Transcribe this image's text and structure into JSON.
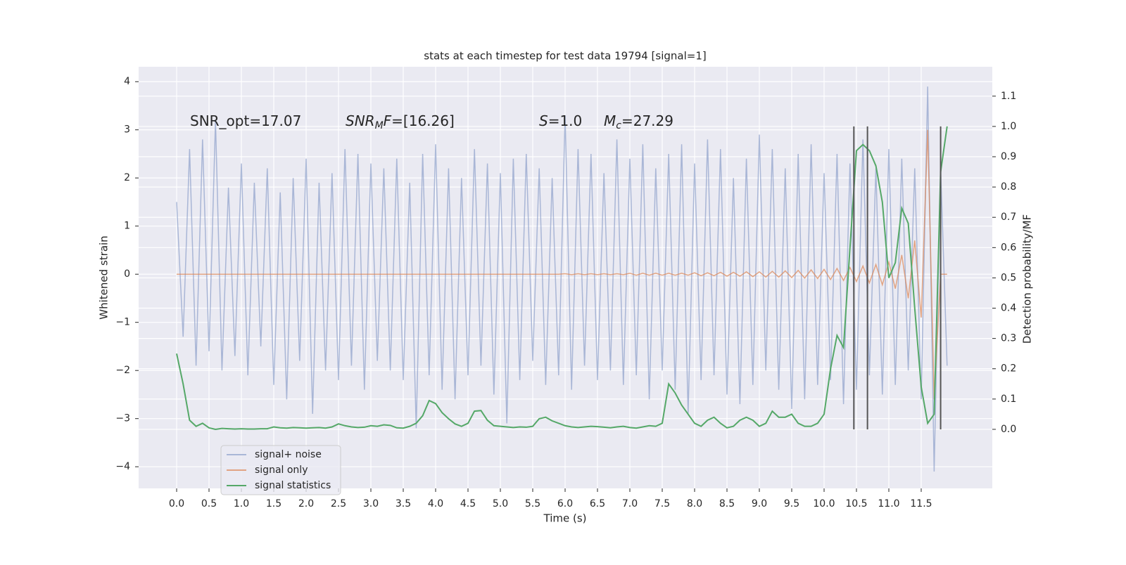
{
  "chart_data": {
    "type": "line",
    "title": "stats at each timestep for test data 19794 [signal=1]",
    "xlabel": "Time (s)",
    "ylabel": "Whitened strain",
    "y2label": "Detection probability/MF",
    "xlim": [
      -0.587,
      12.598
    ],
    "ylim": [
      -4.45,
      4.31
    ],
    "y2lim": [
      -0.195,
      1.197
    ],
    "xticks": [
      {
        "value": 0,
        "label": "0.0"
      },
      0.5,
      {
        "value": 1,
        "label": "1.0"
      },
      1.5,
      {
        "value": 2,
        "label": "2.0"
      },
      2.5,
      {
        "value": 3,
        "label": "3.0"
      },
      3.5,
      {
        "value": 4,
        "label": "4.0"
      },
      4.5,
      {
        "value": 5,
        "label": "5.0"
      },
      5.5,
      {
        "value": 6,
        "label": "6.0"
      },
      6.5,
      {
        "value": 7,
        "label": "7.0"
      },
      7.5,
      {
        "value": 8,
        "label": "8.0"
      },
      8.5,
      {
        "value": 9,
        "label": "9.0"
      },
      9.5,
      {
        "value": 10,
        "label": "10.0"
      },
      10.5,
      {
        "value": 11,
        "label": "11.0"
      },
      11.5
    ],
    "yticks": [
      {
        "value": -4,
        "label": "−4"
      },
      {
        "value": -3,
        "label": "−3"
      },
      {
        "value": -2,
        "label": "−2"
      },
      {
        "value": -1,
        "label": "−1"
      },
      0,
      1,
      2,
      3,
      4
    ],
    "y2ticks": [
      {
        "value": 0,
        "label": "0.0"
      },
      0.1,
      0.2,
      0.3,
      0.4,
      0.5,
      0.6,
      0.7,
      0.8,
      0.9,
      {
        "value": 1,
        "label": "1.0"
      },
      1.1
    ],
    "grid": true,
    "legend": "lower left",
    "x": [
      0,
      0.1,
      0.2,
      0.3,
      0.4,
      0.5,
      0.6,
      0.7,
      0.8,
      0.9,
      1,
      1.1,
      1.2,
      1.3,
      1.4,
      1.5,
      1.6,
      1.7,
      1.8,
      1.9,
      2,
      2.1,
      2.2,
      2.3,
      2.4,
      2.5,
      2.6,
      2.7,
      2.8,
      2.9,
      3,
      3.1,
      3.2,
      3.3,
      3.4,
      3.5,
      3.6,
      3.7,
      3.8,
      3.9,
      4,
      4.1,
      4.2,
      4.3,
      4.4,
      4.5,
      4.6,
      4.7,
      4.8,
      4.9,
      5,
      5.1,
      5.2,
      5.3,
      5.4,
      5.5,
      5.6,
      5.7,
      5.8,
      5.9,
      6,
      6.1,
      6.2,
      6.3,
      6.4,
      6.5,
      6.6,
      6.7,
      6.8,
      6.9,
      7,
      7.1,
      7.2,
      7.3,
      7.4,
      7.5,
      7.6,
      7.7,
      7.8,
      7.9,
      8,
      8.1,
      8.2,
      8.3,
      8.4,
      8.5,
      8.6,
      8.7,
      8.8,
      8.9,
      9,
      9.1,
      9.2,
      9.3,
      9.4,
      9.5,
      9.6,
      9.7,
      9.8,
      9.9,
      10,
      10.1,
      10.2,
      10.3,
      10.4,
      10.5,
      10.6,
      10.7,
      10.8,
      10.9,
      11,
      11.1,
      11.2,
      11.3,
      11.4,
      11.5,
      11.6,
      11.7,
      11.8,
      11.9
    ],
    "series": [
      {
        "name": "signal+ noise",
        "color": "#8da0cb",
        "axis": "y",
        "values": [
          1.5,
          -1.3,
          2.6,
          -1.9,
          2.8,
          -1.6,
          3.2,
          -2.0,
          1.8,
          -1.7,
          2.3,
          -2.1,
          1.9,
          -1.5,
          2.2,
          -2.3,
          1.7,
          -2.6,
          2.0,
          -1.8,
          2.4,
          -2.9,
          1.9,
          -2.0,
          2.1,
          -2.2,
          2.6,
          -1.9,
          2.5,
          -2.4,
          2.3,
          -1.8,
          2.2,
          -2.0,
          2.4,
          -2.2,
          1.9,
          -3.2,
          2.5,
          -2.1,
          2.7,
          -2.4,
          2.2,
          -2.6,
          2.0,
          -2.1,
          2.6,
          -1.9,
          2.3,
          -2.5,
          2.1,
          -3.1,
          2.4,
          -2.2,
          2.5,
          -1.8,
          2.2,
          -2.3,
          2.0,
          -2.1,
          3.3,
          -2.4,
          2.6,
          -1.9,
          2.5,
          -2.2,
          2.1,
          -2.0,
          2.8,
          -2.3,
          2.4,
          -2.1,
          2.7,
          -2.6,
          2.2,
          -2.0,
          2.5,
          -2.4,
          2.7,
          -2.9,
          2.3,
          -2.2,
          2.8,
          -2.1,
          2.6,
          -2.5,
          2.0,
          -2.7,
          2.4,
          -2.3,
          2.9,
          -2.0,
          2.6,
          -2.4,
          2.2,
          -2.8,
          2.5,
          -2.6,
          2.7,
          -2.3,
          2.1,
          -2.2,
          2.5,
          -2.7,
          2.3,
          -2.4,
          2.8,
          -2.1,
          2.2,
          -2.5,
          2.6,
          -2.3,
          2.4,
          -2.0,
          2.2,
          -2.6,
          3.9,
          -4.1,
          2.2,
          -1.9
        ]
      },
      {
        "name": "signal only",
        "color": "#dd8452",
        "axis": "y",
        "values": [
          0,
          0,
          0,
          0,
          0,
          0,
          0,
          0,
          0,
          0,
          0,
          0,
          0,
          0,
          0,
          0,
          0,
          0,
          0,
          0,
          0,
          0,
          0,
          0,
          0,
          0,
          0,
          0,
          0,
          0,
          0,
          0,
          0,
          0,
          0,
          0,
          0,
          0,
          0,
          0,
          0,
          0,
          0,
          0,
          0,
          0,
          0,
          0,
          0,
          0,
          0,
          0,
          0,
          0,
          0,
          0,
          0,
          0,
          0,
          0,
          0.01,
          -0.01,
          0.01,
          -0.01,
          0.01,
          -0.01,
          0.01,
          -0.01,
          0.01,
          -0.01,
          0.02,
          -0.02,
          0.02,
          -0.02,
          0.02,
          -0.02,
          0.02,
          -0.02,
          0.02,
          -0.02,
          0.03,
          -0.03,
          0.03,
          -0.03,
          0.04,
          -0.04,
          0.04,
          -0.04,
          0.05,
          -0.05,
          0.05,
          -0.06,
          0.06,
          -0.06,
          0.07,
          -0.07,
          0.08,
          -0.08,
          0.09,
          -0.09,
          0.1,
          -0.11,
          0.12,
          -0.13,
          0.14,
          -0.15,
          0.17,
          -0.18,
          0.2,
          -0.22,
          0.25,
          -0.3,
          0.4,
          -0.5,
          0.7,
          -0.9,
          3.0,
          -2.6,
          0,
          0
        ]
      },
      {
        "name": "signal statistics",
        "color": "#55a868",
        "axis": "y2",
        "values": [
          0.25,
          0.15,
          0.03,
          0.01,
          0.02,
          0.005,
          0.0,
          0.003,
          0.002,
          0.001,
          0.002,
          0.001,
          0.001,
          0.002,
          0.002,
          0.008,
          0.005,
          0.004,
          0.006,
          0.005,
          0.004,
          0.005,
          0.006,
          0.004,
          0.008,
          0.018,
          0.012,
          0.008,
          0.006,
          0.007,
          0.012,
          0.01,
          0.015,
          0.013,
          0.005,
          0.004,
          0.01,
          0.02,
          0.045,
          0.095,
          0.085,
          0.055,
          0.035,
          0.018,
          0.01,
          0.02,
          0.06,
          0.062,
          0.03,
          0.012,
          0.01,
          0.008,
          0.006,
          0.008,
          0.007,
          0.01,
          0.035,
          0.04,
          0.028,
          0.02,
          0.012,
          0.008,
          0.006,
          0.008,
          0.01,
          0.009,
          0.007,
          0.005,
          0.008,
          0.01,
          0.006,
          0.004,
          0.008,
          0.012,
          0.01,
          0.02,
          0.15,
          0.12,
          0.08,
          0.05,
          0.02,
          0.01,
          0.03,
          0.04,
          0.02,
          0.005,
          0.01,
          0.03,
          0.04,
          0.03,
          0.01,
          0.02,
          0.06,
          0.04,
          0.04,
          0.05,
          0.02,
          0.01,
          0.01,
          0.02,
          0.05,
          0.2,
          0.31,
          0.27,
          0.6,
          0.92,
          0.94,
          0.92,
          0.87,
          0.75,
          0.5,
          0.55,
          0.73,
          0.68,
          0.4,
          0.14,
          0.02,
          0.05,
          0.85,
          1.0
        ]
      }
    ],
    "vlines": [
      10.46,
      10.67,
      11.8
    ],
    "vline_range": [
      0,
      1
    ],
    "vline_color": "#555555",
    "annotations": [
      [
        {
          "t": "SNR_opt=17.07",
          "style": "normal"
        }
      ],
      [
        {
          "t": "SNR",
          "style": "italic"
        },
        {
          "t": "M",
          "style": "sub"
        },
        {
          "t": "F",
          "style": "italic"
        },
        {
          "t": "=[16.26]",
          "style": "normal"
        }
      ],
      [
        {
          "t": "S",
          "style": "italic"
        },
        {
          "t": "=1.0",
          "style": "normal"
        }
      ],
      [
        {
          "t": "M",
          "style": "italic"
        },
        {
          "t": "c",
          "style": "sub"
        },
        {
          "t": "=27.29",
          "style": "normal"
        }
      ]
    ]
  }
}
